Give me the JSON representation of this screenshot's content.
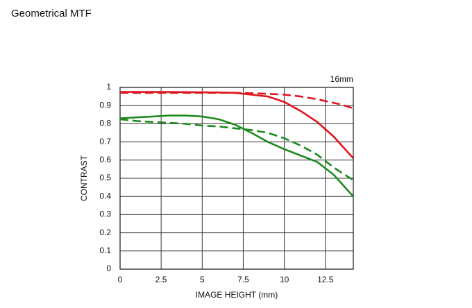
{
  "chart_data": {
    "type": "line",
    "title": "Geometrical MTF",
    "annotation": "16mm",
    "x_label": "IMAGE HEIGHT (mm)",
    "y_label": "CONTRAST",
    "x": [
      0,
      1,
      2,
      3,
      4,
      5,
      6,
      7,
      8,
      9,
      10,
      11,
      12,
      13,
      13.5,
      14.2
    ],
    "series": [
      {
        "color": "#e0141e",
        "dashed": false,
        "values": [
          0.975,
          0.975,
          0.975,
          0.975,
          0.974,
          0.973,
          0.972,
          0.97,
          0.96,
          0.95,
          0.92,
          0.87,
          0.81,
          0.73,
          0.68,
          0.61
        ]
      },
      {
        "color": "#e0141e",
        "dashed": true,
        "values": [
          0.97,
          0.97,
          0.97,
          0.97,
          0.97,
          0.97,
          0.97,
          0.97,
          0.968,
          0.965,
          0.96,
          0.95,
          0.935,
          0.915,
          0.905,
          0.885
        ]
      },
      {
        "color": "#1e8a1e",
        "dashed": false,
        "values": [
          0.83,
          0.835,
          0.84,
          0.845,
          0.845,
          0.84,
          0.825,
          0.795,
          0.75,
          0.7,
          0.66,
          0.625,
          0.59,
          0.52,
          0.47,
          0.4
        ]
      },
      {
        "color": "#1e8a1e",
        "dashed": true,
        "values": [
          0.825,
          0.815,
          0.81,
          0.805,
          0.8,
          0.79,
          0.785,
          0.775,
          0.765,
          0.75,
          0.72,
          0.68,
          0.63,
          0.56,
          0.53,
          0.49
        ]
      }
    ],
    "xlim": [
      0,
      14.2
    ],
    "xticks": [
      0,
      2.5,
      5,
      7.5,
      10,
      12.5
    ],
    "ylim": [
      0,
      1
    ],
    "yticks": [
      0,
      0.1,
      0.2,
      0.3,
      0.4,
      0.5,
      0.6,
      0.7,
      0.8,
      0.9,
      1
    ],
    "grid": true
  }
}
